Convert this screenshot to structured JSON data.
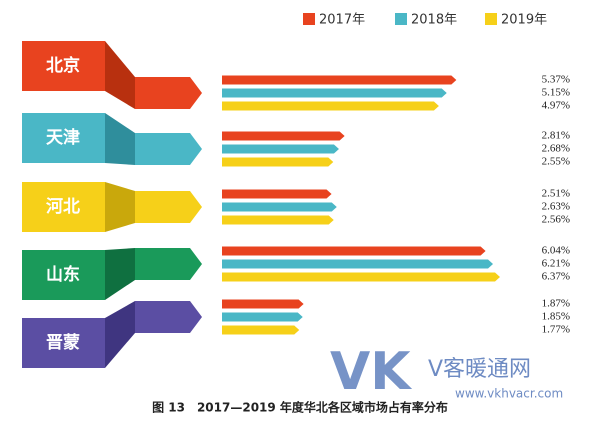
{
  "chart_data": {
    "type": "bar",
    "orientation": "horizontal",
    "title": "图 13　2017—2019 年度华北各区域市场占有率分布",
    "categories": [
      "北京",
      "天津",
      "河北",
      "山东",
      "晋蒙"
    ],
    "series": [
      {
        "name": "2017年",
        "color": "#e8431f",
        "values": [
          5.37,
          2.81,
          2.51,
          6.04,
          1.87
        ],
        "value_labels": [
          "5.37%",
          "2.81%",
          "2.51%",
          "6.04%",
          "1.87%"
        ]
      },
      {
        "name": "2018年",
        "color": "#4ab7c6",
        "values": [
          5.15,
          2.68,
          2.63,
          6.21,
          1.85
        ],
        "value_labels": [
          "5.15%",
          "2.68%",
          "2.63%",
          "6.21%",
          "1.85%"
        ]
      },
      {
        "name": "2019年",
        "color": "#f6d019",
        "values": [
          4.97,
          2.55,
          2.56,
          6.37,
          1.77
        ],
        "value_labels": [
          "4.97%",
          "2.55%",
          "2.56%",
          "6.37%",
          "1.77%"
        ]
      }
    ],
    "legend": "top-right",
    "grid": false
  },
  "watermark": {
    "logo": "VK",
    "name": "V客暖通网",
    "url": "www.vkhvacr.com"
  }
}
